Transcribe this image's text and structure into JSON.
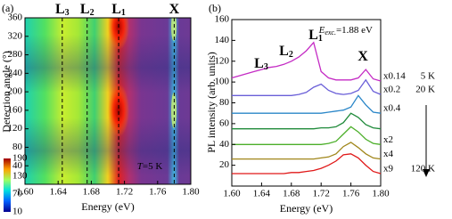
{
  "chart_data": [
    {
      "type": "heatmap",
      "panel_label": "(a)",
      "xlabel": "Energy (eV)",
      "ylabel": "Detection angle (°)",
      "xlim": [
        1.6,
        1.8
      ],
      "xticks": [
        {
          "value": 1.6,
          "label": "1.60"
        },
        {
          "value": 1.64,
          "label": "1.64"
        },
        {
          "value": 1.68,
          "label": "1.68"
        },
        {
          "value": 1.72,
          "label": "1.72"
        },
        {
          "value": 1.76,
          "label": "1.76"
        },
        {
          "value": 1.8,
          "label": "1.80"
        }
      ],
      "ylim": [
        0,
        360
      ],
      "yticks": [
        40,
        80,
        120,
        160,
        200,
        240,
        280,
        320,
        360
      ],
      "colorbar": {
        "lim": [
          10,
          190
        ],
        "ticks": [
          10,
          70,
          130,
          190
        ]
      },
      "peaks": [
        {
          "letter": "L",
          "sub": "3",
          "energy": 1.645
        },
        {
          "letter": "L",
          "sub": "2",
          "energy": 1.675
        },
        {
          "letter": "L",
          "sub": "1",
          "energy": 1.713
        },
        {
          "letter": "X",
          "energy": 1.78
        }
      ],
      "annotation": {
        "italic": "T",
        "text": "=5 K"
      }
    },
    {
      "type": "line",
      "panel_label": "(b)",
      "xlabel": "Energy (eV)",
      "ylabel": "PL intensity (arb. units)",
      "x": [
        1.6,
        1.61,
        1.62,
        1.63,
        1.64,
        1.65,
        1.66,
        1.67,
        1.68,
        1.69,
        1.7,
        1.71,
        1.72,
        1.73,
        1.74,
        1.75,
        1.76,
        1.77,
        1.78,
        1.79,
        1.8
      ],
      "xlim": [
        1.6,
        1.8
      ],
      "xticks": [
        {
          "value": 1.6,
          "label": "1.60"
        },
        {
          "value": 1.64,
          "label": "1.64"
        },
        {
          "value": 1.68,
          "label": "1.68"
        },
        {
          "value": 1.72,
          "label": "1.72"
        },
        {
          "value": 1.76,
          "label": "1.76"
        },
        {
          "value": 1.8,
          "label": "1.80"
        }
      ],
      "ylim": [
        0,
        160
      ],
      "yticks": [
        20,
        40,
        60,
        80,
        100,
        120,
        140,
        160
      ],
      "series": [
        {
          "name": "x0.14",
          "temperature": "5 K",
          "color": "#c42bc4",
          "values": [
            104,
            106,
            108,
            110,
            112,
            114,
            115,
            117,
            120,
            124,
            130,
            138,
            110,
            104,
            102,
            102,
            102,
            104,
            112,
            103,
            101
          ]
        },
        {
          "name": "x0.2",
          "temperature": "20 K",
          "color": "#6a5fd8",
          "values": [
            87,
            87,
            87,
            87,
            87,
            87,
            87,
            87,
            87,
            88,
            90,
            95,
            98,
            92,
            89,
            88,
            89,
            92,
            102,
            91,
            88
          ]
        },
        {
          "name": "x0.4",
          "color": "#2a86c8",
          "values": [
            70,
            70,
            70,
            70,
            70,
            70,
            70,
            70,
            70,
            70,
            70,
            70,
            70,
            71,
            72,
            73,
            76,
            87,
            78,
            71,
            70
          ]
        },
        {
          "color": "#1f8a3a",
          "values": [
            55,
            55,
            55,
            55,
            55,
            55,
            55,
            55,
            55,
            55,
            55,
            55,
            56,
            56,
            57,
            61,
            70,
            66,
            59,
            56,
            55
          ]
        },
        {
          "name": "x2",
          "color": "#4caf2a",
          "values": [
            40,
            40,
            40,
            40,
            40,
            40,
            40,
            40,
            40,
            40,
            40,
            40,
            40,
            41,
            43,
            50,
            57,
            52,
            45,
            41,
            40
          ]
        },
        {
          "name": "x4",
          "color": "#a0861a",
          "values": [
            26,
            26,
            26,
            26,
            26,
            26,
            26,
            26,
            26,
            26,
            26,
            26,
            27,
            28,
            31,
            38,
            42,
            37,
            31,
            27,
            26
          ]
        },
        {
          "name": "x9",
          "temperature": "120 K",
          "color": "#e01818",
          "values": [
            12,
            12,
            12,
            12,
            12,
            12,
            12,
            12,
            13,
            13,
            14,
            15,
            17,
            20,
            24,
            30,
            31,
            27,
            20,
            14,
            12
          ]
        }
      ],
      "peak_labels": [
        {
          "letter": "L",
          "sub": "3"
        },
        {
          "letter": "L",
          "sub": "2"
        },
        {
          "letter": "L",
          "sub": "1"
        },
        {
          "letter": "X"
        }
      ],
      "annotation": {
        "italic": "E",
        "sub": "exc.",
        "text": "=1.88 eV"
      }
    }
  ]
}
